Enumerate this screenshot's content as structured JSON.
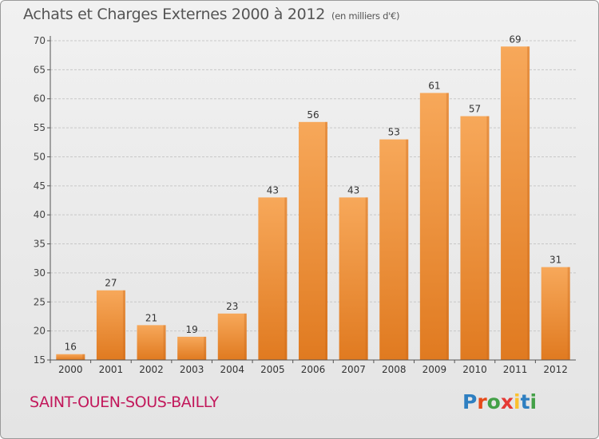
{
  "header": {
    "title": "Achats et Charges Externes 2000 à 2012",
    "unit": "(en milliers d'€)"
  },
  "footer": {
    "commune": "SAINT-OUEN-SOUS-BAILLY",
    "brand": "Proxiti",
    "brand_letters": [
      {
        "ch": "P",
        "color": "#2e7fc1"
      },
      {
        "ch": "r",
        "color": "#e64a19"
      },
      {
        "ch": "o",
        "color": "#43a047"
      },
      {
        "ch": "x",
        "color": "#e53935"
      },
      {
        "ch": "i",
        "color": "#fbc02d"
      },
      {
        "ch": "t",
        "color": "#2e7fc1"
      },
      {
        "ch": "i",
        "color": "#43a047"
      }
    ]
  },
  "colors": {
    "bar_light": "#f7a85a",
    "bar_dark": "#e07a20",
    "grid": "#c8c8c8",
    "axis": "#555555"
  },
  "chart_data": {
    "type": "bar",
    "title": "Achats et Charges Externes 2000 à 2012",
    "subtitle": "(en milliers d'€)",
    "xlabel": "",
    "ylabel": "",
    "categories": [
      "2000",
      "2001",
      "2002",
      "2003",
      "2004",
      "2005",
      "2006",
      "2007",
      "2008",
      "2009",
      "2010",
      "2011",
      "2012"
    ],
    "values": [
      16,
      27,
      21,
      19,
      23,
      43,
      56,
      43,
      53,
      61,
      57,
      69,
      31
    ],
    "ylim": [
      15,
      70
    ],
    "yticks": [
      15,
      20,
      25,
      30,
      35,
      40,
      45,
      50,
      55,
      60,
      65,
      70
    ],
    "grid": true,
    "legend": "none"
  }
}
